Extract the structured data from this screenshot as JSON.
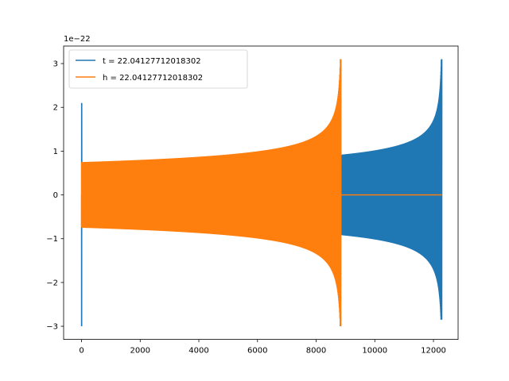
{
  "chart_data": {
    "type": "line",
    "title": "",
    "xlabel": "",
    "ylabel": "",
    "xlim": [
      -611,
      12840
    ],
    "ylim": [
      -3.3,
      3.4
    ],
    "y_scale_offset": "1e−22",
    "grid": false,
    "legend_position": "top-left",
    "x_ticks": [
      {
        "value": 0,
        "label": "0"
      },
      {
        "value": 2000,
        "label": "2000"
      },
      {
        "value": 4000,
        "label": "4000"
      },
      {
        "value": 6000,
        "label": "6000"
      },
      {
        "value": 8000,
        "label": "8000"
      },
      {
        "value": 10000,
        "label": "10000"
      },
      {
        "value": 12000,
        "label": "12000"
      }
    ],
    "y_ticks": [
      {
        "value": -3,
        "label": "−3"
      },
      {
        "value": -2,
        "label": "−2"
      },
      {
        "value": -1,
        "label": "−1"
      },
      {
        "value": 0,
        "label": "0"
      },
      {
        "value": 1,
        "label": "1"
      },
      {
        "value": 2,
        "label": "2"
      },
      {
        "value": 3,
        "label": "3"
      }
    ],
    "series": [
      {
        "name": "t = 22.04127712018302",
        "color": "#1f77b4",
        "description_points": {
          "burst_x": [
            0,
            10
          ],
          "burst_max": 2.1,
          "burst_min": -3.0,
          "chirp_start_x": 8870,
          "chirp_end_x": 12290,
          "chirp_start_amplitude": 0.92,
          "chirp_peak_max": 3.1,
          "chirp_peak_min": -2.85
        }
      },
      {
        "name": "h = 22.04127712018302",
        "color": "#ff7f0e",
        "description_points": {
          "chirp_start_x": 0,
          "chirp_end_x": 8850,
          "chirp_start_amplitude": 0.75,
          "chirp_peak_max": 3.1,
          "chirp_peak_min": -3.0,
          "flat_after_x": [
            8850,
            12290
          ],
          "flat_value": 0
        }
      }
    ]
  }
}
